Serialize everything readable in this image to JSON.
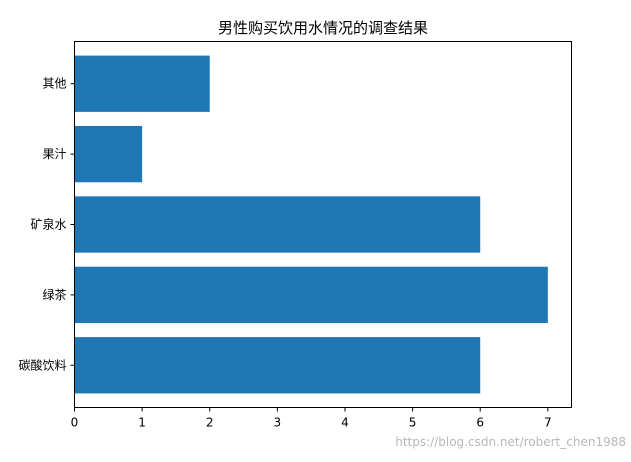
{
  "chart_data": {
    "type": "bar",
    "orientation": "horizontal",
    "title": "男性购买饮用水情况的调查结果",
    "categories": [
      "碳酸饮料",
      "绿茶",
      "矿泉水",
      "果汁",
      "其他"
    ],
    "values": [
      6,
      7,
      6,
      1,
      2
    ],
    "xlabel": "",
    "ylabel": "",
    "xlim": [
      0,
      7.35
    ],
    "xticks": [
      "0",
      "1",
      "2",
      "3",
      "4",
      "5",
      "6",
      "7"
    ],
    "bar_color": "#1f77b4",
    "grid": false,
    "legend": "none"
  },
  "watermark": "https://blog.csdn.net/robert_chen1988"
}
